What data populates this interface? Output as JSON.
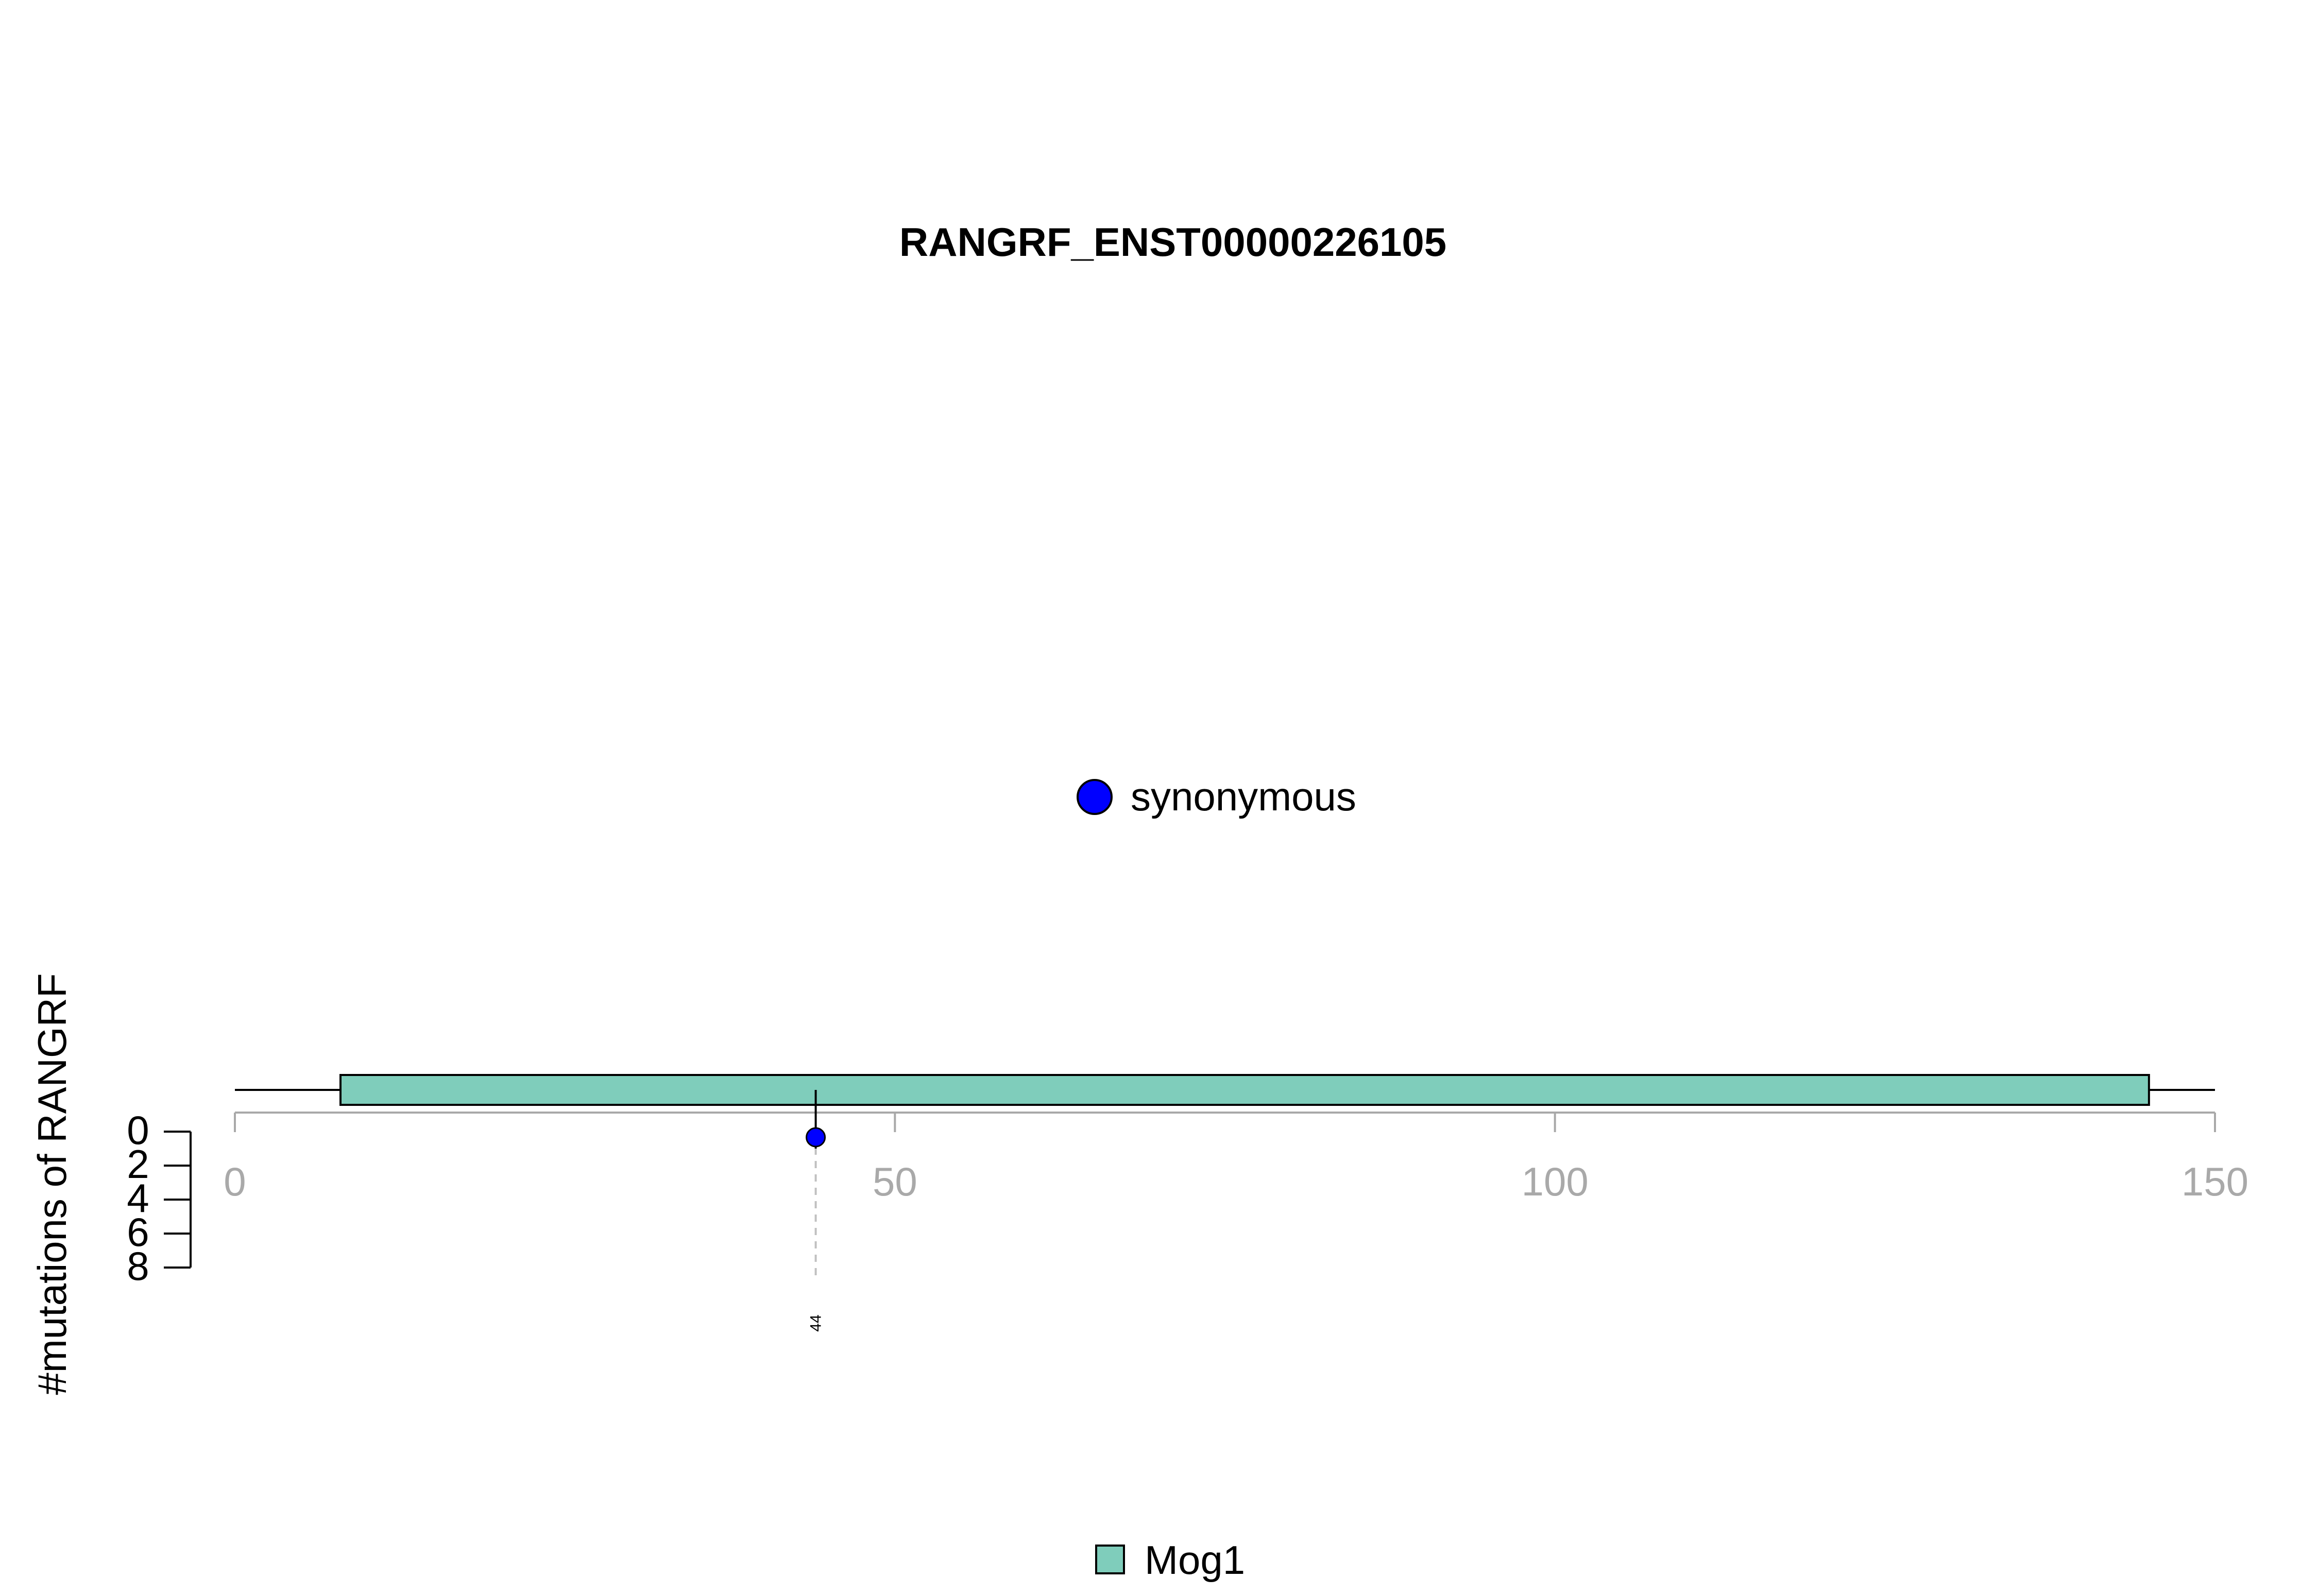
{
  "chart_data": {
    "type": "lollipop",
    "title": "RANGRF_ENST00000226105",
    "ylabel": "#mutations of RANGRF",
    "xlim": [
      0,
      150
    ],
    "xticks": [
      0,
      50,
      100,
      150
    ],
    "ylim": [
      0,
      8
    ],
    "yticks": [
      0,
      2,
      4,
      6,
      8
    ],
    "protein_length": 150,
    "legend_mutations": [
      {
        "label": "synonymous",
        "color": "#0000ff"
      }
    ],
    "mutations": [
      {
        "position": 44,
        "count": 1,
        "type": "synonymous",
        "color": "#0000ff",
        "label": "44"
      }
    ],
    "domains": [
      {
        "name": "Mog1",
        "start": 8,
        "end": 145,
        "color": "#7fcdbb"
      }
    ],
    "legend_domains": [
      {
        "label": "Mog1",
        "color": "#7fcdbb"
      }
    ]
  }
}
